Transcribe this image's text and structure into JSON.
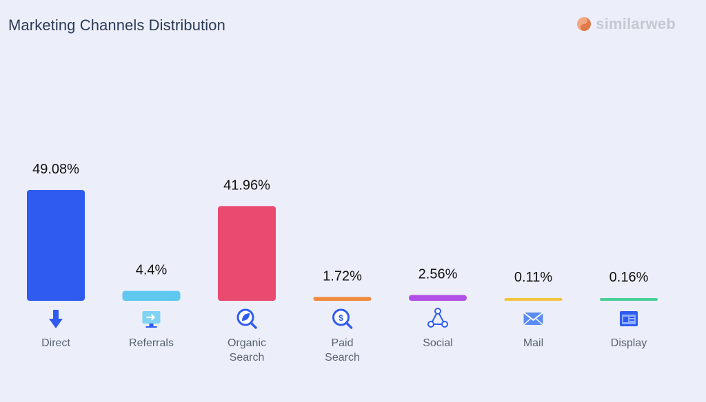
{
  "header": {
    "title": "Marketing Channels Distribution",
    "brand_name": "similarweb",
    "brand_colors": [
      "#f3a882",
      "#c5c9d1"
    ]
  },
  "chart_data": {
    "type": "bar",
    "title": "Marketing Channels Distribution",
    "xlabel": "",
    "ylabel": "",
    "ylim": [
      0,
      49.08
    ],
    "grid": false,
    "legend": "none",
    "categories": [
      [
        "Direct"
      ],
      [
        "Referrals"
      ],
      [
        "Organic",
        "Search"
      ],
      [
        "Paid",
        "Search"
      ],
      [
        "Social"
      ],
      [
        "Mail"
      ],
      [
        "Display"
      ]
    ],
    "values": [
      49.08,
      4.4,
      41.96,
      1.72,
      2.56,
      0.11,
      0.16
    ],
    "value_labels": [
      "49.08%",
      "4.4%",
      "41.96%",
      "1.72%",
      "2.56%",
      "0.11%",
      "0.16%"
    ],
    "colors": [
      "#2f5bf0",
      "#5ec8ef",
      "#ea4a70",
      "#f08a3e",
      "#b14fe8",
      "#f4c443",
      "#4ccf96"
    ],
    "icons": [
      "direct-arrow-icon",
      "referrals-monitor-icon",
      "organic-search-icon",
      "paid-search-icon",
      "social-share-icon",
      "mail-envelope-icon",
      "display-window-icon"
    ]
  }
}
